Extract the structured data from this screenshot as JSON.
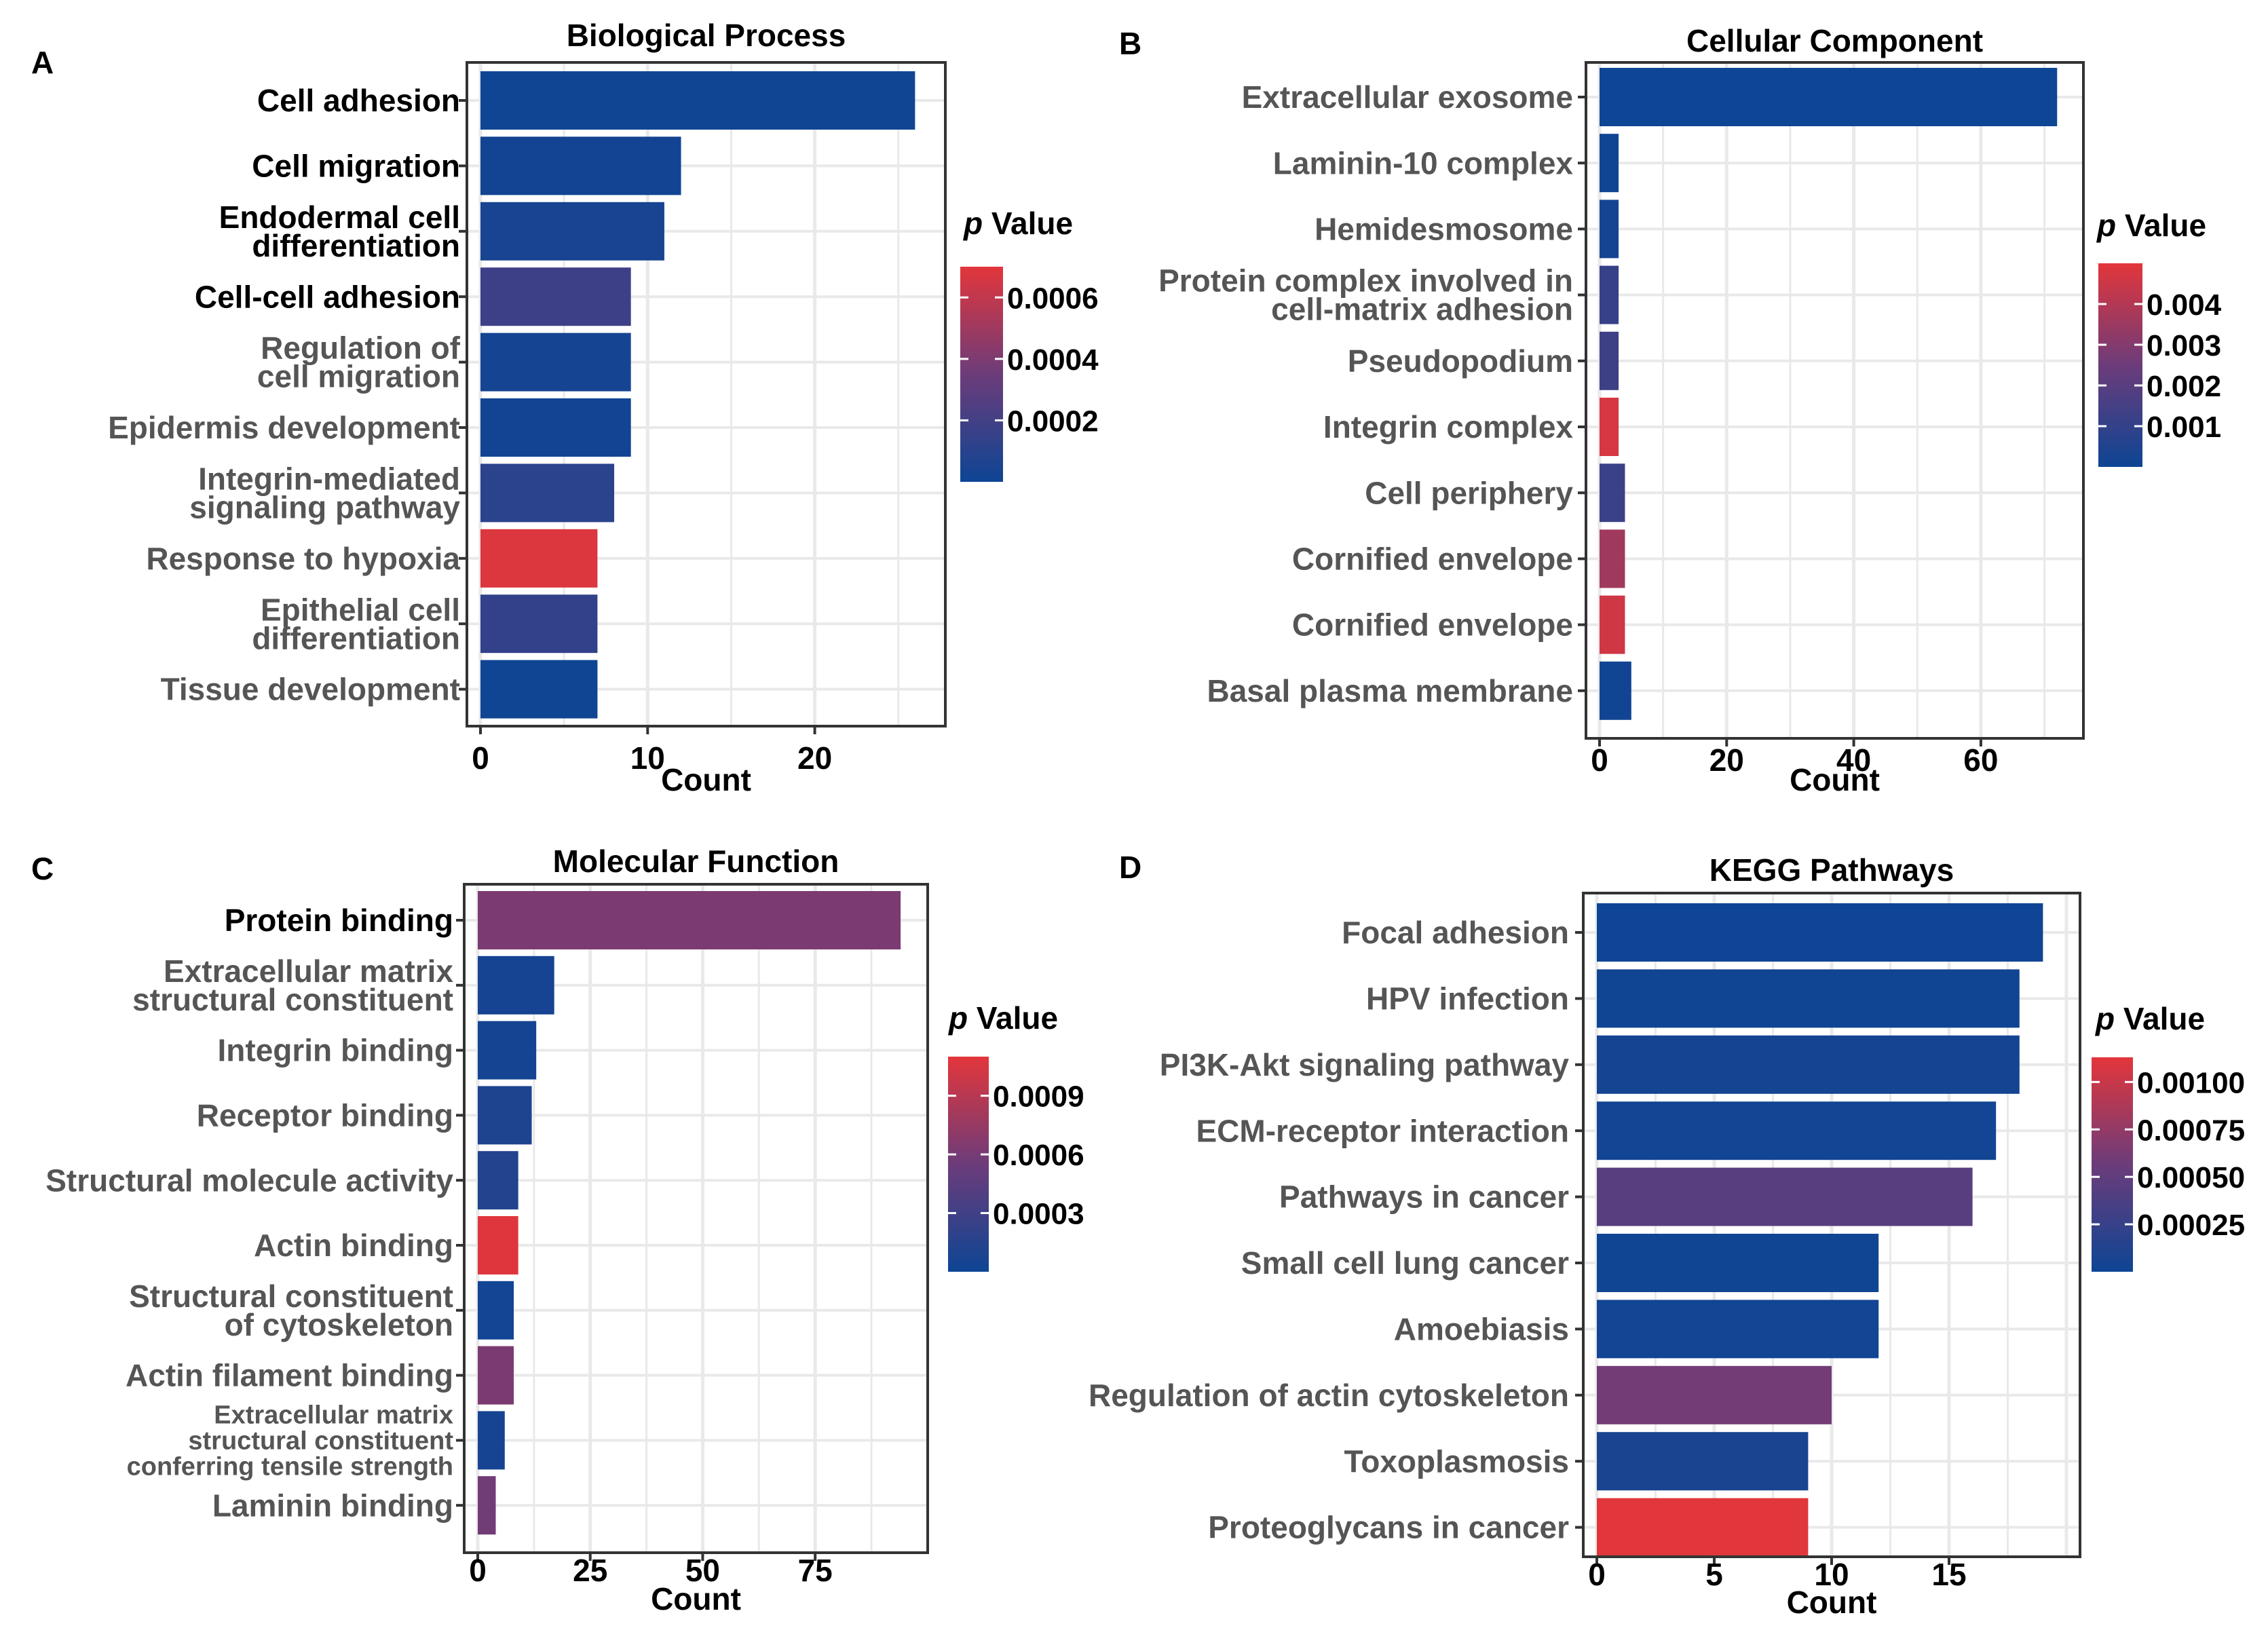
{
  "figure": {
    "legend_title_p": "p",
    "legend_title_rest": "Value",
    "xlabel": "Count"
  },
  "colors": {
    "low": "#0d4594",
    "mid": "#6c3c7a",
    "high": "#e3363b",
    "grid": "#e9e9e9",
    "frame": "#333333",
    "label_dark": "#000000",
    "label_gray": "#555555"
  },
  "chart_data": [
    {
      "panel": "A",
      "type": "bar",
      "orientation": "horizontal",
      "title": "Biological Process",
      "xlabel": "Count",
      "xlim": [
        0,
        27
      ],
      "xticks": [
        0,
        10,
        20
      ],
      "categories": [
        "Cell adhesion",
        "Cell migration",
        "Endodermal cell|differentiation",
        "Cell-cell adhesion",
        "Regulation of|cell migration",
        "Epidermis development",
        "Integrin-mediated|signaling pathway",
        "Response to hypoxia",
        "Epithelial cell|differentiation",
        "Tissue development"
      ],
      "label_dark": [
        true,
        true,
        true,
        true,
        false,
        false,
        false,
        false,
        false,
        false
      ],
      "values": [
        26,
        12,
        11,
        9,
        9,
        9,
        8,
        7,
        7,
        7
      ],
      "p_values": [
        1e-05,
        2e-05,
        4e-05,
        0.00018,
        3e-05,
        2e-05,
        0.00011,
        0.00068,
        0.00014,
        1e-05
      ],
      "legend": {
        "min": 0.0,
        "max": 0.0007,
        "ticks": [
          0.0002,
          0.0004,
          0.0006
        ],
        "tick_labels": [
          "0.0002",
          "0.0004",
          "0.0006"
        ]
      }
    },
    {
      "panel": "B",
      "type": "bar",
      "orientation": "horizontal",
      "title": "Cellular Component",
      "xlabel": "Count",
      "xlim": [
        0,
        74
      ],
      "xticks": [
        0,
        20,
        40,
        60
      ],
      "categories": [
        "Extracellular exosome",
        "Laminin-10 complex",
        "Hemidesmosome",
        "Protein complex involved in|cell-matrix adhesion",
        "Pseudopodium",
        "Integrin complex",
        "Cell periphery",
        "Cornified envelope",
        "Cornified envelope",
        "Basal plasma membrane"
      ],
      "label_dark": [
        false,
        false,
        false,
        false,
        false,
        false,
        false,
        false,
        false,
        false
      ],
      "values": [
        72,
        3,
        3,
        3,
        3,
        3,
        4,
        4,
        4,
        5
      ],
      "p_values": [
        2e-05,
        5e-05,
        0.0002,
        0.0011,
        0.0013,
        0.0047,
        0.0012,
        0.0036,
        0.0046,
        0.0001
      ],
      "legend": {
        "min": 0.0,
        "max": 0.005,
        "ticks": [
          0.001,
          0.002,
          0.003,
          0.004
        ],
        "tick_labels": [
          "0.001",
          "0.002",
          "0.003",
          "0.004"
        ]
      }
    },
    {
      "panel": "C",
      "type": "bar",
      "orientation": "horizontal",
      "title": "Molecular Function",
      "xlabel": "Count",
      "xlim": [
        0,
        97
      ],
      "xticks": [
        0,
        25,
        50,
        75
      ],
      "categories": [
        "Protein binding",
        "Extracellular matrix|structural constituent",
        "Integrin binding",
        "Receptor binding",
        "Structural molecule activity",
        "Actin binding",
        "Structural constituent|of cytoskeleton",
        "Actin filament binding",
        "Extracellular matrix|structural constituent|conferring tensile strength",
        "Laminin binding"
      ],
      "label_dark": [
        true,
        false,
        false,
        false,
        false,
        false,
        false,
        false,
        false,
        false
      ],
      "values": [
        94,
        17,
        13,
        12,
        9,
        9,
        8,
        8,
        6,
        4
      ],
      "p_values": [
        0.00062,
        5e-05,
        4e-05,
        0.0001,
        0.00012,
        0.00108,
        3e-05,
        0.00062,
        5e-05,
        0.00058
      ],
      "legend": {
        "min": 0.0,
        "max": 0.0011,
        "ticks": [
          0.0003,
          0.0006,
          0.0009
        ],
        "tick_labels": [
          "0.0003",
          "0.0006",
          "0.0009"
        ]
      }
    },
    {
      "panel": "D",
      "type": "bar",
      "orientation": "horizontal",
      "title": "KEGG Pathways",
      "xlabel": "Count",
      "xlim": [
        0,
        20
      ],
      "xticks": [
        0,
        5,
        10,
        15
      ],
      "categories": [
        "Focal adhesion",
        "HPV infection",
        "PI3K-Akt signaling pathway",
        "ECM-receptor interaction",
        "Pathways in cancer",
        "Small cell lung cancer",
        "Amoebiasis",
        "Regulation of actin cytoskeleton",
        "Toxoplasmosis",
        "Proteoglycans in cancer"
      ],
      "label_dark": [
        false,
        false,
        false,
        false,
        false,
        false,
        false,
        false,
        false,
        false
      ],
      "values": [
        19,
        18,
        18,
        17,
        16,
        12,
        12,
        10,
        9,
        9
      ],
      "p_values": [
        1e-05,
        2e-05,
        4e-05,
        3e-05,
        0.00045,
        2e-05,
        3e-05,
        0.0006,
        8e-05,
        0.00112
      ],
      "legend": {
        "min": 0.0,
        "max": 0.00113,
        "ticks": [
          0.00025,
          0.0005,
          0.00075,
          0.001
        ],
        "tick_labels": [
          "0.00025",
          "0.00050",
          "0.00075",
          "0.00100"
        ]
      }
    }
  ]
}
